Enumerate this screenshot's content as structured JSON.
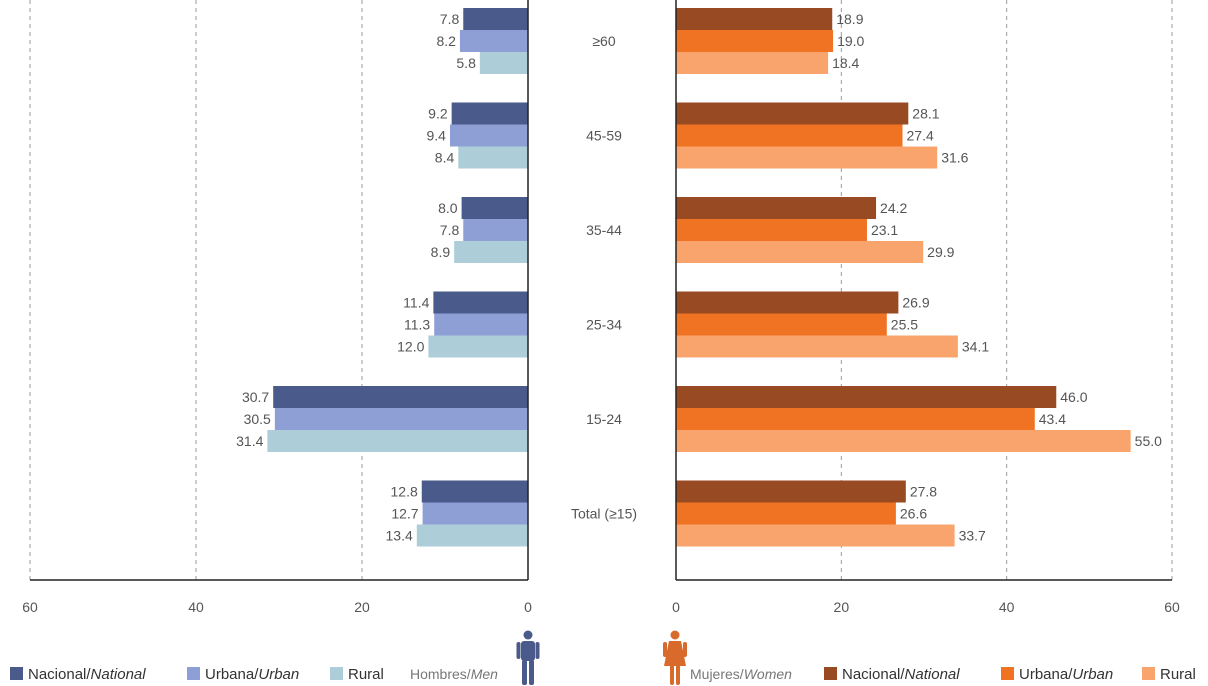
{
  "chart_data": {
    "type": "bar",
    "orientation": "horizontal",
    "categories": [
      "≥60",
      "45-59",
      "35-44",
      "25-34",
      "15-24",
      "Total (≥15)"
    ],
    "x_ticks_left": [
      "60",
      "40",
      "20",
      "0"
    ],
    "x_ticks_right": [
      "0",
      "20",
      "40",
      "60"
    ],
    "xlim": [
      0,
      60
    ],
    "grid": "vertical-dashed",
    "panels": [
      {
        "side": "left",
        "group_label": "Hombres/",
        "group_label_italic": "Men",
        "icon": "man-icon",
        "series": [
          {
            "name": "Nacional/",
            "name_italic": "National",
            "color": "#4a5a8a",
            "values": [
              7.8,
              9.2,
              8.0,
              11.4,
              30.7,
              12.8
            ],
            "labels": [
              "7.8",
              "9.2",
              "8.0",
              "11.4",
              "30.7",
              "12.8"
            ]
          },
          {
            "name": "Urbana/",
            "name_italic": "Urban",
            "color": "#8e9fd6",
            "values": [
              8.2,
              9.4,
              7.8,
              11.3,
              30.5,
              12.7
            ],
            "labels": [
              "8.2",
              "9.4",
              "7.8",
              "11.3",
              "30.5",
              "12.7"
            ]
          },
          {
            "name": "Rural",
            "name_italic": "",
            "color": "#adcdd8",
            "values": [
              5.8,
              8.4,
              8.9,
              12.0,
              31.4,
              13.4
            ],
            "labels": [
              "5.8",
              "8.4",
              "8.9",
              "12.0",
              "31.4",
              "13.4"
            ]
          }
        ]
      },
      {
        "side": "right",
        "group_label": "Mujeres/",
        "group_label_italic": "Women",
        "icon": "woman-icon",
        "series": [
          {
            "name": "Nacional/",
            "name_italic": "National",
            "color": "#984a22",
            "values": [
              18.9,
              28.1,
              24.2,
              26.9,
              46.0,
              27.8
            ],
            "labels": [
              "18.9",
              "28.1",
              "24.2",
              "26.9",
              "46.0",
              "27.8"
            ]
          },
          {
            "name": "Urbana/",
            "name_italic": "Urban",
            "color": "#f07324",
            "values": [
              19.0,
              27.4,
              23.1,
              25.5,
              43.4,
              26.6
            ],
            "labels": [
              "19.0",
              "27.4",
              "23.1",
              "25.5",
              "43.4",
              "26.6"
            ]
          },
          {
            "name": "Rural",
            "name_italic": "",
            "color": "#f9a46d",
            "values": [
              18.4,
              31.6,
              29.9,
              34.1,
              55.0,
              33.7
            ],
            "labels": [
              "18.4",
              "31.6",
              "29.9",
              "34.1",
              "55.0",
              "33.7"
            ]
          }
        ]
      }
    ]
  }
}
